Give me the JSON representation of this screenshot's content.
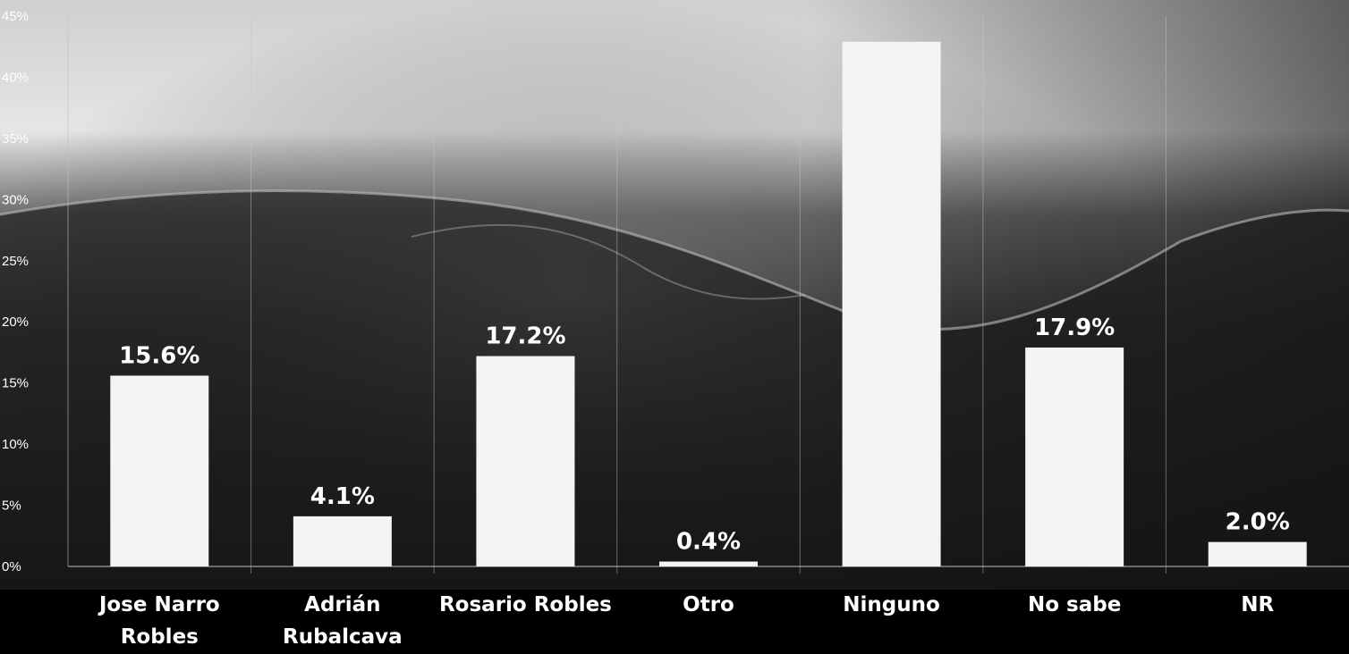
{
  "chart_data": {
    "type": "bar",
    "categories": [
      [
        "Jose Narro",
        "Robles"
      ],
      [
        "Adrián",
        "Rubalcava"
      ],
      [
        "Rosario Robles"
      ],
      [
        "Otro"
      ],
      [
        "Ninguno"
      ],
      [
        "No sabe"
      ],
      [
        "NR"
      ]
    ],
    "values": [
      15.6,
      4.1,
      17.2,
      0.4,
      42.9,
      17.9,
      2.0
    ],
    "value_labels": [
      "15.6%",
      "4.1%",
      "17.2%",
      "0.4%",
      "",
      "17.9%",
      "2.0%"
    ],
    "ylim": [
      0,
      45
    ],
    "yticks": [
      0,
      5,
      10,
      15,
      20,
      25,
      30,
      35,
      40,
      45
    ],
    "ytick_labels": [
      "0%",
      "5%",
      "10%",
      "15%",
      "20%",
      "25%",
      "30%",
      "35%",
      "40%",
      "45%"
    ],
    "grid": "vertical separators",
    "legend": "none",
    "colors": {
      "bar": "#f4f4f4",
      "text": "#ffffff",
      "background_top": "#d9d9d9",
      "background_bottom": "#000000"
    }
  }
}
